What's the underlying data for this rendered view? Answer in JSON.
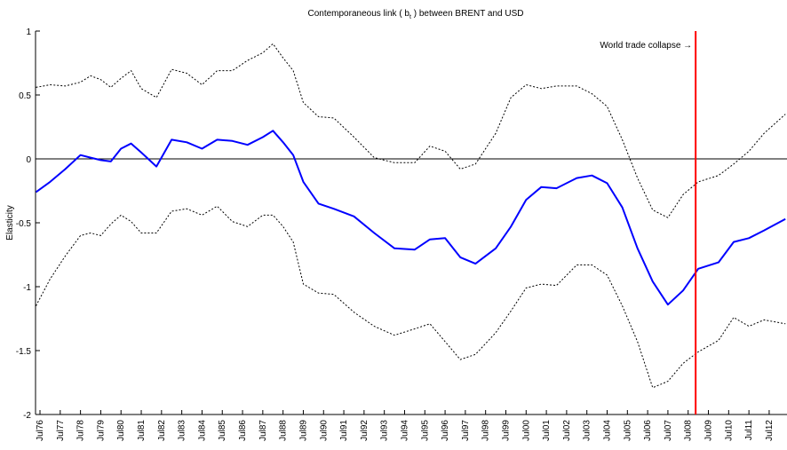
{
  "chart_data": {
    "type": "line",
    "title_before": "Contemporaneous link ( b",
    "title_sub": "t",
    "title_after": " ) between BRENT and USD",
    "y_label": "Elasticity",
    "ylim": [
      -2,
      1
    ],
    "yticks": [
      -2,
      -1.5,
      -1,
      -0.5,
      0,
      0.5,
      1
    ],
    "xlim": [
      1976.28,
      2013.38
    ],
    "xticks": [
      {
        "value": 1976.5,
        "label": "Jul76"
      },
      {
        "value": 1977.5,
        "label": "Jul77"
      },
      {
        "value": 1978.5,
        "label": "Jul78"
      },
      {
        "value": 1979.5,
        "label": "Jul79"
      },
      {
        "value": 1980.5,
        "label": "Jul80"
      },
      {
        "value": 1981.5,
        "label": "Jul81"
      },
      {
        "value": 1982.5,
        "label": "Jul82"
      },
      {
        "value": 1983.5,
        "label": "Jul83"
      },
      {
        "value": 1984.5,
        "label": "Jul84"
      },
      {
        "value": 1985.5,
        "label": "Jul85"
      },
      {
        "value": 1986.5,
        "label": "Jul86"
      },
      {
        "value": 1987.5,
        "label": "Jul87"
      },
      {
        "value": 1988.5,
        "label": "Jul88"
      },
      {
        "value": 1989.5,
        "label": "Jul89"
      },
      {
        "value": 1990.5,
        "label": "Jul90"
      },
      {
        "value": 1991.5,
        "label": "Jul91"
      },
      {
        "value": 1992.5,
        "label": "Jul92"
      },
      {
        "value": 1993.5,
        "label": "Jul93"
      },
      {
        "value": 1994.5,
        "label": "Jul94"
      },
      {
        "value": 1995.5,
        "label": "Jul95"
      },
      {
        "value": 1996.5,
        "label": "Jul96"
      },
      {
        "value": 1997.5,
        "label": "Jul97"
      },
      {
        "value": 1998.5,
        "label": "Jul98"
      },
      {
        "value": 1999.5,
        "label": "Jul99"
      },
      {
        "value": 2000.5,
        "label": "Jul00"
      },
      {
        "value": 2001.5,
        "label": "Jul01"
      },
      {
        "value": 2002.5,
        "label": "Jul02"
      },
      {
        "value": 2003.5,
        "label": "Jul03"
      },
      {
        "value": 2004.5,
        "label": "Jul04"
      },
      {
        "value": 2005.5,
        "label": "Jul05"
      },
      {
        "value": 2006.5,
        "label": "Jul06"
      },
      {
        "value": 2007.5,
        "label": "Jul07"
      },
      {
        "value": 2008.5,
        "label": "Jul08"
      },
      {
        "value": 2009.5,
        "label": "Jul09"
      },
      {
        "value": 2010.5,
        "label": "Jul10"
      },
      {
        "value": 2011.5,
        "label": "Jul11"
      },
      {
        "value": 2012.5,
        "label": "Jul12"
      }
    ],
    "hline": 0,
    "x": [
      1976.3,
      1977,
      1977.75,
      1978.5,
      1979,
      1979.5,
      1980,
      1980.5,
      1981,
      1981.5,
      1982.25,
      1983,
      1983.75,
      1984.5,
      1985.25,
      1986,
      1986.75,
      1987.5,
      1988,
      1988.5,
      1989,
      1989.5,
      1990.25,
      1991,
      1992,
      1993,
      1994,
      1995,
      1995.75,
      1996.5,
      1997.25,
      1998,
      1999,
      1999.75,
      2000.5,
      2001.25,
      2002,
      2003,
      2003.75,
      2004.5,
      2005.25,
      2006,
      2006.75,
      2007.5,
      2008.25,
      2009,
      2010,
      2010.75,
      2011.5,
      2012.25,
      2013.3
    ],
    "series": [
      {
        "color": "#0000ff",
        "style": "solid",
        "values": [
          -0.26,
          -0.18,
          -0.08,
          0.03,
          0.01,
          -0.01,
          -0.02,
          0.08,
          0.12,
          0.05,
          -0.06,
          0.15,
          0.13,
          0.08,
          0.15,
          0.14,
          0.11,
          0.17,
          0.22,
          0.13,
          0.03,
          -0.18,
          -0.35,
          -0.39,
          -0.45,
          -0.58,
          -0.7,
          -0.71,
          -0.63,
          -0.62,
          -0.77,
          -0.82,
          -0.7,
          -0.53,
          -0.32,
          -0.22,
          -0.23,
          -0.15,
          -0.13,
          -0.19,
          -0.38,
          -0.7,
          -0.96,
          -1.14,
          -1.03,
          -0.86,
          -0.81,
          -0.65,
          -0.62,
          -0.56,
          -0.47
        ]
      },
      {
        "color": "#000000",
        "style": "dotted",
        "values": [
          0.56,
          0.58,
          0.57,
          0.6,
          0.65,
          0.62,
          0.56,
          0.63,
          0.69,
          0.55,
          0.48,
          0.7,
          0.67,
          0.58,
          0.69,
          0.69,
          0.77,
          0.83,
          0.9,
          0.79,
          0.69,
          0.44,
          0.33,
          0.32,
          0.17,
          0.01,
          -0.03,
          -0.03,
          0.1,
          0.06,
          -0.08,
          -0.04,
          0.2,
          0.48,
          0.58,
          0.55,
          0.57,
          0.57,
          0.51,
          0.41,
          0.15,
          -0.15,
          -0.4,
          -0.46,
          -0.28,
          -0.18,
          -0.13,
          -0.04,
          0.06,
          0.2,
          0.35
        ]
      },
      {
        "color": "#000000",
        "style": "dotted",
        "values": [
          -1.15,
          -0.94,
          -0.76,
          -0.6,
          -0.58,
          -0.6,
          -0.51,
          -0.44,
          -0.49,
          -0.58,
          -0.58,
          -0.41,
          -0.39,
          -0.44,
          -0.37,
          -0.49,
          -0.53,
          -0.44,
          -0.44,
          -0.53,
          -0.65,
          -0.98,
          -1.05,
          -1.06,
          -1.2,
          -1.31,
          -1.38,
          -1.33,
          -1.29,
          -1.43,
          -1.57,
          -1.53,
          -1.36,
          -1.19,
          -1.01,
          -0.98,
          -0.99,
          -0.83,
          -0.83,
          -0.91,
          -1.15,
          -1.43,
          -1.79,
          -1.74,
          -1.6,
          -1.51,
          -1.42,
          -1.24,
          -1.31,
          -1.26,
          -1.29
        ]
      }
    ],
    "event": {
      "x": 2008.87,
      "label": "World trade collapse →",
      "color": "#ff0000"
    }
  }
}
